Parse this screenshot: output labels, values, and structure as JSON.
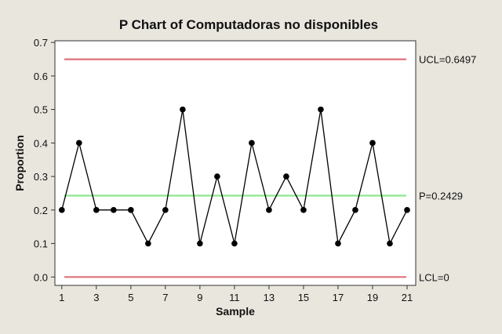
{
  "chart_data": {
    "type": "line",
    "title": "P Chart of Computadoras no disponibles",
    "xlabel": "Sample",
    "ylabel": "Proportion",
    "x": [
      1,
      2,
      3,
      4,
      5,
      6,
      7,
      8,
      9,
      10,
      11,
      12,
      13,
      14,
      15,
      16,
      17,
      18,
      19,
      20,
      21
    ],
    "values": [
      0.2,
      0.4,
      0.2,
      0.2,
      0.2,
      0.1,
      0.2,
      0.5,
      0.1,
      0.3,
      0.1,
      0.4,
      0.2,
      0.3,
      0.2,
      0.5,
      0.1,
      0.2,
      0.4,
      0.1,
      0.2
    ],
    "xticks": [
      1,
      3,
      5,
      7,
      9,
      11,
      13,
      15,
      17,
      19,
      21
    ],
    "yticks": [
      "0.0",
      "0.1",
      "0.2",
      "0.3",
      "0.4",
      "0.5",
      "0.6",
      "0.7"
    ],
    "xlim": [
      0.6,
      21.5
    ],
    "ylim": [
      -0.025,
      0.705
    ],
    "grid": false,
    "reference_lines": [
      {
        "label": "UCL=0.6497",
        "value": 0.6497,
        "color": "#e0707a"
      },
      {
        "label": "P=0.2429",
        "value": 0.2429,
        "color": "#8ee88e"
      },
      {
        "label": "LCL=0",
        "value": 0,
        "color": "#e0707a"
      }
    ],
    "series_color": "#000000",
    "plot_background": "#ffffff",
    "figure_background": "#e9e6de"
  }
}
